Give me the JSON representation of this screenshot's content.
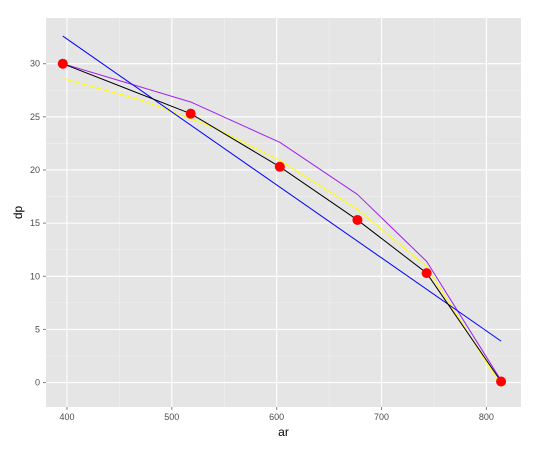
{
  "chart_data": {
    "type": "line",
    "title": "",
    "xlabel": "ar",
    "ylabel": "dp",
    "xlim": [
      380,
      833
    ],
    "ylim": [
      -2.3,
      34.3
    ],
    "x_ticks": [
      400,
      500,
      600,
      700,
      800
    ],
    "y_ticks": [
      0,
      5,
      10,
      15,
      20,
      25,
      30
    ],
    "x_tick_labels": [
      "400",
      "500",
      "600",
      "700",
      "800"
    ],
    "y_tick_labels": [
      "0",
      "5",
      "10",
      "15",
      "20",
      "25",
      "30"
    ],
    "grid": true,
    "background": "#e5e5e5",
    "points": {
      "color": "#ff0000",
      "x": [
        396,
        518,
        603,
        677,
        743,
        814
      ],
      "y": [
        30,
        25.3,
        20.3,
        15.3,
        10.3,
        0.1
      ]
    },
    "series": [
      {
        "color": "#000000",
        "x": [
          396,
          518,
          603,
          677,
          743,
          814
        ],
        "y": [
          30,
          25.3,
          20.3,
          15.3,
          10.3,
          0.1
        ]
      },
      {
        "color": "#0000ff",
        "x": [
          396,
          814
        ],
        "y": [
          32.6,
          3.9
        ]
      },
      {
        "color": "#ffff00",
        "x": [
          396,
          470,
          540,
          603,
          677,
          743,
          814
        ],
        "y": [
          28.6,
          26.6,
          24.0,
          20.9,
          16.3,
          10.9,
          -0.3
        ]
      },
      {
        "color": "#a020f0",
        "x": [
          396,
          518,
          603,
          677,
          743,
          814
        ],
        "y": [
          30.0,
          26.4,
          22.6,
          17.7,
          11.4,
          0.2
        ]
      }
    ]
  }
}
